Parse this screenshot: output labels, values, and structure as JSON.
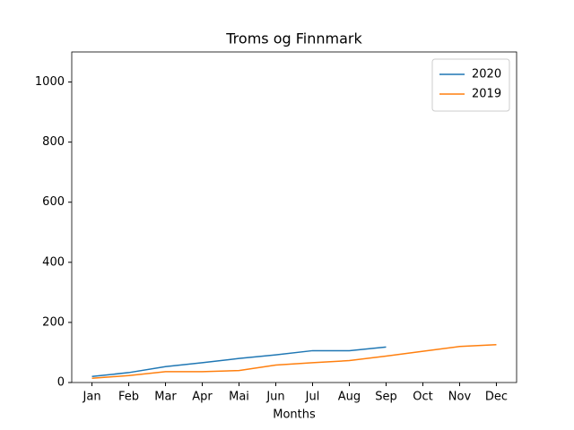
{
  "chart_data": {
    "type": "line",
    "title": "Troms og Finnmark",
    "x_label": "Months",
    "categories": [
      "Jan",
      "Feb",
      "Mar",
      "Apr",
      "Mai",
      "Jun",
      "Jul",
      "Aug",
      "Sep",
      "Oct",
      "Nov",
      "Dec"
    ],
    "series": [
      {
        "name": "2020",
        "color": "#1f77b4",
        "values": [
          20,
          33,
          53,
          66,
          80,
          92,
          106,
          106,
          118,
          null,
          null,
          null
        ]
      },
      {
        "name": "2019",
        "color": "#ff7f0e",
        "values": [
          14,
          23,
          36,
          36,
          40,
          58,
          66,
          73,
          88,
          104,
          120,
          126
        ]
      }
    ],
    "ylim": [
      0,
      1100
    ],
    "yticks": [
      0,
      200,
      400,
      600,
      800,
      1000
    ],
    "legend": "upper right",
    "grid": false
  }
}
